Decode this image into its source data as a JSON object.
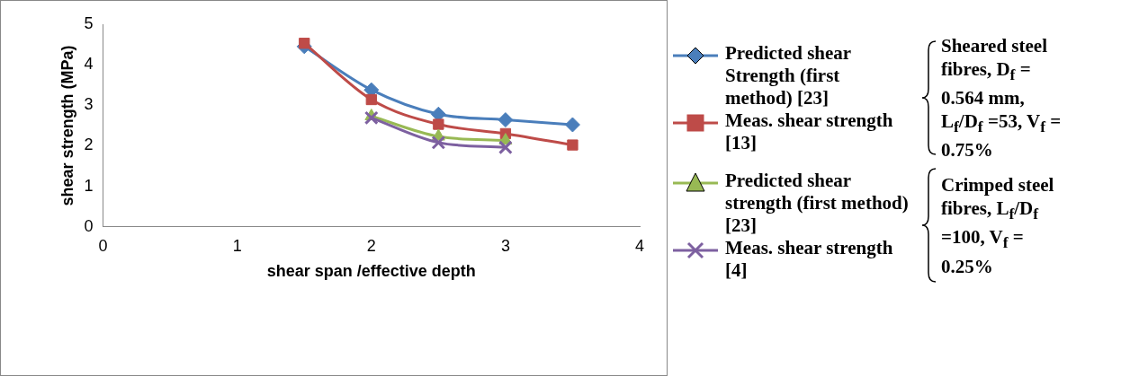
{
  "chart_data": {
    "type": "line",
    "xlabel": "shear span /effective depth",
    "ylabel": "shear strength (MPa)",
    "xlim": [
      0,
      4
    ],
    "xticks": [
      0,
      1,
      2,
      3,
      4
    ],
    "ylim": [
      0,
      5
    ],
    "yticks": [
      0,
      1,
      2,
      3,
      4,
      5
    ],
    "grid": false,
    "legend": "right",
    "series": [
      {
        "name": "Predicted shear Strength (first method) [23]",
        "color": "#4a7ebb",
        "marker": "diamond",
        "x": [
          1.5,
          2,
          2.5,
          3,
          3.5
        ],
        "values": [
          4.45,
          3.38,
          2.78,
          2.64,
          2.52
        ]
      },
      {
        "name": "Meas. shear strength [13]",
        "color": "#be4b48",
        "marker": "square",
        "x": [
          1.5,
          2,
          2.5,
          3,
          3.5
        ],
        "values": [
          4.53,
          3.14,
          2.53,
          2.3,
          2.02
        ]
      },
      {
        "name": "Predicted shear strength (first method) [23]",
        "color": "#98b954",
        "marker": "triangle",
        "x": [
          2,
          2.5,
          3
        ],
        "values": [
          2.73,
          2.23,
          2.13
        ]
      },
      {
        "name": "Meas. shear strength [4]",
        "color": "#7d60a0",
        "marker": "cross",
        "x": [
          2,
          2.5,
          3
        ],
        "values": [
          2.69,
          2.08,
          1.96
        ]
      }
    ],
    "annotations": [
      "Sheared steel fibres, D$_{f}$ = 0.564 mm, L$_{f}$/D$_{f}$ =53, V$_{f}$ = 0.75%",
      "Crimped steel fibres, L$_{f}$/D$_{f}$ =100, V$_{f}$ = 0.25%"
    ]
  }
}
